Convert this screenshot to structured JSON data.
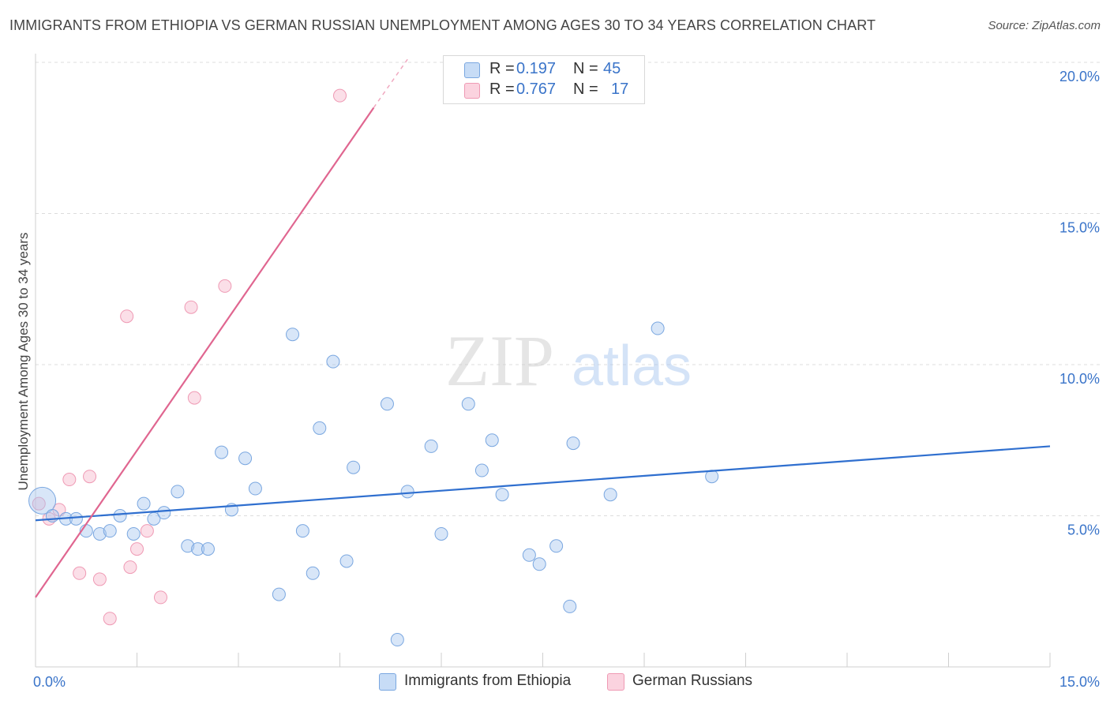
{
  "title": "IMMIGRANTS FROM ETHIOPIA VS GERMAN RUSSIAN UNEMPLOYMENT AMONG AGES 30 TO 34 YEARS CORRELATION CHART",
  "source": "Source: ZipAtlas.com",
  "watermark": {
    "zip": "ZIP",
    "atlas": "atlas"
  },
  "legend_top": {
    "rows": [
      {
        "r_label": "R =",
        "r_value": "0.197",
        "n_label": "N =",
        "n_value": "45",
        "color": "#a9c8f0"
      },
      {
        "r_label": "R =",
        "r_value": "0.767",
        "n_label": "N =",
        "n_value": "17",
        "color": "#f6b9cb"
      }
    ]
  },
  "legend_bottom": [
    {
      "label": "Immigrants from Ethiopia",
      "color": "#a9c8f0"
    },
    {
      "label": "German Russians",
      "color": "#f6b9cb"
    }
  ],
  "colors": {
    "blue_fill": "rgba(169,200,240,0.45)",
    "blue_stroke": "#7aa7e0",
    "blue_line": "#2f6fcf",
    "pink_fill": "rgba(246,185,203,0.45)",
    "pink_stroke": "#ef9ab4",
    "pink_line": "#e06690",
    "grid": "#dcdcdc",
    "tick_label": "#3a74c9"
  },
  "chart_data": {
    "type": "scatter",
    "title": "IMMIGRANTS FROM ETHIOPIA VS GERMAN RUSSIAN UNEMPLOYMENT AMONG AGES 30 TO 34 YEARS CORRELATION CHART",
    "xlabel": "",
    "ylabel": "Unemployment Among Ages 30 to 34 years",
    "xlim": [
      0,
      15
    ],
    "ylim": [
      0,
      20
    ],
    "x_tick_labels": [
      {
        "value": 0,
        "label": "0.0%"
      },
      {
        "value": 15,
        "label": "15.0%"
      }
    ],
    "y_tick_labels": [
      {
        "value": 5,
        "label": "5.0%"
      },
      {
        "value": 10,
        "label": "10.0%"
      },
      {
        "value": 15,
        "label": "15.0%"
      },
      {
        "value": 20,
        "label": "20.0%"
      }
    ],
    "series": [
      {
        "name": "Immigrants from Ethiopia",
        "points": [
          {
            "x": 0.1,
            "y": 5.5,
            "big": true
          },
          {
            "x": 0.25,
            "y": 5.0
          },
          {
            "x": 0.45,
            "y": 4.9
          },
          {
            "x": 0.6,
            "y": 4.9
          },
          {
            "x": 0.75,
            "y": 4.5
          },
          {
            "x": 0.95,
            "y": 4.4
          },
          {
            "x": 1.1,
            "y": 4.5
          },
          {
            "x": 1.25,
            "y": 5.0
          },
          {
            "x": 1.45,
            "y": 4.4
          },
          {
            "x": 1.6,
            "y": 5.4
          },
          {
            "x": 1.75,
            "y": 4.9
          },
          {
            "x": 1.9,
            "y": 5.1
          },
          {
            "x": 2.1,
            "y": 5.8
          },
          {
            "x": 2.25,
            "y": 4.0
          },
          {
            "x": 2.4,
            "y": 3.9
          },
          {
            "x": 2.55,
            "y": 3.9
          },
          {
            "x": 2.75,
            "y": 7.1
          },
          {
            "x": 2.9,
            "y": 5.2
          },
          {
            "x": 3.1,
            "y": 6.9
          },
          {
            "x": 3.25,
            "y": 5.9
          },
          {
            "x": 3.6,
            "y": 2.4
          },
          {
            "x": 3.8,
            "y": 11.0
          },
          {
            "x": 3.95,
            "y": 4.5
          },
          {
            "x": 4.1,
            "y": 3.1
          },
          {
            "x": 4.2,
            "y": 7.9
          },
          {
            "x": 4.4,
            "y": 10.1
          },
          {
            "x": 4.6,
            "y": 3.5
          },
          {
            "x": 4.7,
            "y": 6.6
          },
          {
            "x": 5.2,
            "y": 8.7
          },
          {
            "x": 5.35,
            "y": 0.9
          },
          {
            "x": 5.5,
            "y": 5.8
          },
          {
            "x": 5.85,
            "y": 7.3
          },
          {
            "x": 6.0,
            "y": 4.4
          },
          {
            "x": 6.4,
            "y": 8.7
          },
          {
            "x": 6.6,
            "y": 6.5
          },
          {
            "x": 6.75,
            "y": 7.5
          },
          {
            "x": 6.9,
            "y": 5.7
          },
          {
            "x": 7.3,
            "y": 3.7
          },
          {
            "x": 7.45,
            "y": 3.4
          },
          {
            "x": 7.7,
            "y": 4.0
          },
          {
            "x": 7.9,
            "y": 2.0
          },
          {
            "x": 7.95,
            "y": 7.4
          },
          {
            "x": 8.5,
            "y": 5.7
          },
          {
            "x": 9.2,
            "y": 11.2
          },
          {
            "x": 10.0,
            "y": 6.3
          }
        ],
        "trend": {
          "x0": 0,
          "y0": 4.85,
          "x1": 15,
          "y1": 7.3
        }
      },
      {
        "name": "German Russians",
        "points": [
          {
            "x": 0.05,
            "y": 5.4
          },
          {
            "x": 0.2,
            "y": 4.9
          },
          {
            "x": 0.35,
            "y": 5.2
          },
          {
            "x": 0.5,
            "y": 6.2
          },
          {
            "x": 0.65,
            "y": 3.1
          },
          {
            "x": 0.8,
            "y": 6.3
          },
          {
            "x": 0.95,
            "y": 2.9
          },
          {
            "x": 1.1,
            "y": 1.6
          },
          {
            "x": 1.35,
            "y": 11.6
          },
          {
            "x": 1.4,
            "y": 3.3
          },
          {
            "x": 1.5,
            "y": 3.9
          },
          {
            "x": 1.65,
            "y": 4.5
          },
          {
            "x": 1.85,
            "y": 2.3
          },
          {
            "x": 2.3,
            "y": 11.9
          },
          {
            "x": 2.35,
            "y": 8.9
          },
          {
            "x": 2.8,
            "y": 12.6
          },
          {
            "x": 4.5,
            "y": 18.9
          }
        ],
        "trend": {
          "x0": 0,
          "y0": 2.3,
          "x1": 5.0,
          "y1": 18.5
        },
        "trend_dashed_to": {
          "x": 5.5,
          "y": 20.1
        }
      }
    ]
  }
}
